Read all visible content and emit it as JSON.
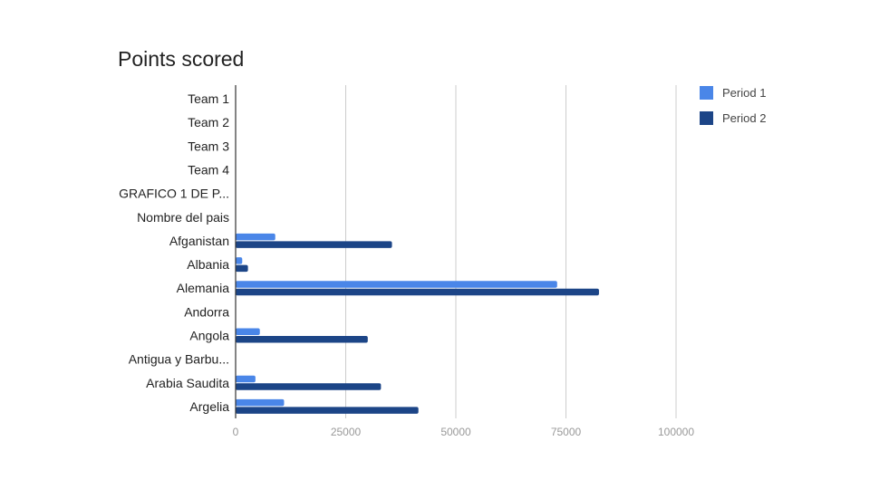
{
  "chart_data": {
    "type": "bar",
    "orientation": "horizontal",
    "title": "Points scored",
    "categories": [
      "Team 1",
      "Team 2",
      "Team 3",
      "Team 4",
      "GRAFICO 1 DE P...",
      "Nombre del pais",
      "Afganistan",
      "Albania",
      "Alemania",
      "Andorra",
      "Angola",
      "Antigua y Barbu...",
      "Arabia Saudita",
      "Argelia"
    ],
    "series": [
      {
        "name": "Period 1",
        "color": "#4a86e8",
        "values": [
          0,
          0,
          0,
          0,
          0,
          0,
          9000,
          1500,
          73000,
          0,
          5500,
          0,
          4500,
          11000
        ]
      },
      {
        "name": "Period 2",
        "color": "#1c4587",
        "values": [
          0,
          0,
          0,
          0,
          0,
          0,
          35500,
          2800,
          82500,
          0,
          30000,
          0,
          33000,
          41500
        ]
      }
    ],
    "xlim": [
      0,
      100000
    ],
    "xticks": [
      0,
      25000,
      50000,
      75000,
      100000
    ],
    "grid": true,
    "legend": "top-right"
  }
}
